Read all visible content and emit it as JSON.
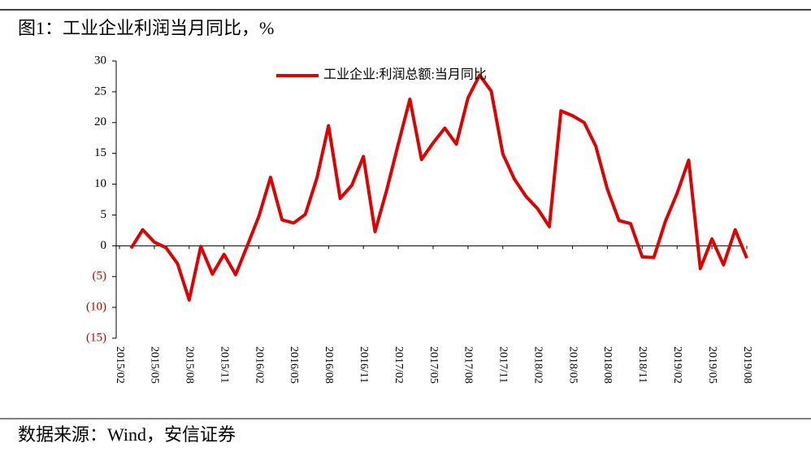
{
  "chart_data": {
    "type": "line",
    "title": "图1：工业企业利润当月同比，%",
    "source": "数据来源：Wind，安信证券",
    "categories": [
      "2015/02",
      null,
      null,
      "2015/05",
      null,
      null,
      "2015/08",
      null,
      null,
      "2015/11",
      null,
      null,
      "2016/02",
      null,
      null,
      "2016/05",
      null,
      null,
      "2016/08",
      null,
      null,
      "2016/11",
      null,
      null,
      "2017/02",
      null,
      null,
      "2017/05",
      null,
      null,
      "2017/08",
      null,
      null,
      "2017/11",
      null,
      null,
      "2018/02",
      null,
      null,
      "2018/05",
      null,
      null,
      "2018/08",
      null,
      null,
      "2018/11",
      null,
      null,
      "2019/02",
      null,
      null,
      "2019/05",
      null,
      null,
      "2019/08"
    ],
    "series": [
      {
        "name": "工业企业:利润总额:当月同比",
        "color": "#e00000",
        "values": [
          null,
          -0.4,
          2.6,
          0.6,
          -0.3,
          -2.9,
          -8.8,
          -0.1,
          -4.6,
          -1.4,
          -4.7,
          0,
          4.8,
          11.1,
          4.2,
          3.7,
          5.1,
          11.0,
          19.5,
          7.7,
          9.8,
          14.5,
          2.3,
          9,
          16.5,
          23.8,
          14.0,
          16.7,
          19.1,
          16.5,
          24.0,
          27.7,
          25.1,
          14.9,
          10.8,
          8,
          6,
          3.1,
          21.9,
          21.1,
          20.0,
          16.2,
          9.2,
          4.1,
          3.6,
          -1.8,
          -1.9,
          4,
          8.5,
          13.9,
          -3.7,
          1.1,
          -3.1,
          2.6,
          -2.0
        ]
      }
    ],
    "ylim": [
      -15,
      30
    ],
    "yticks": [
      30,
      25,
      20,
      15,
      10,
      5,
      0,
      {
        "value": -5,
        "label": "(5)"
      },
      {
        "value": -10,
        "label": "(10)"
      },
      {
        "value": -15,
        "label": "(15)"
      }
    ],
    "negative_tick_color": "#c00000",
    "legend": "top"
  }
}
